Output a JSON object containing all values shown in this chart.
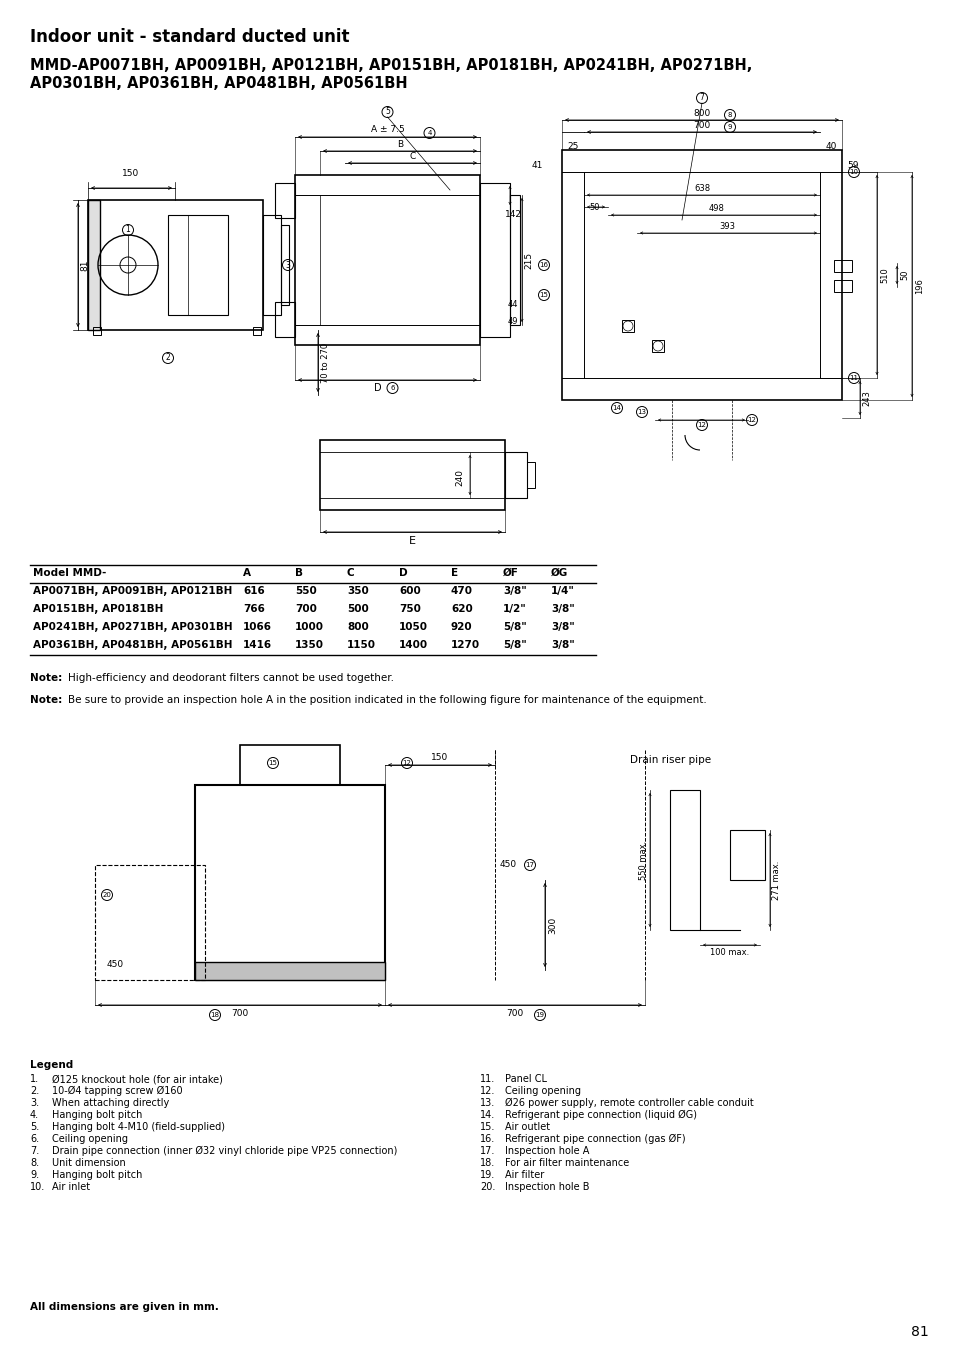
{
  "title": "Indoor unit - standard ducted unit",
  "subtitle_line1": "MMD-AP0071BH, AP0091BH, AP0121BH, AP0151BH, AP0181BH, AP0241BH, AP0271BH,",
  "subtitle_line2": "AP0301BH, AP0361BH, AP0481BH, AP0561BH",
  "table_headers": [
    "Model MMD-",
    "A",
    "B",
    "C",
    "D",
    "E",
    "ØF",
    "ØG"
  ],
  "table_rows": [
    [
      "AP0071BH, AP0091BH, AP0121BH",
      "616",
      "550",
      "350",
      "600",
      "470",
      "3/8\"",
      "1/4\""
    ],
    [
      "AP0151BH, AP0181BH",
      "766",
      "700",
      "500",
      "750",
      "620",
      "1/2\"",
      "3/8\""
    ],
    [
      "AP0241BH, AP0271BH, AP0301BH",
      "1066",
      "1000",
      "800",
      "1050",
      "920",
      "5/8\"",
      "3/8\""
    ],
    [
      "AP0361BH, AP0481BH, AP0561BH",
      "1416",
      "1350",
      "1150",
      "1400",
      "1270",
      "5/8\"",
      "3/8\""
    ]
  ],
  "note1": "High-efficiency and deodorant filters cannot be used together.",
  "note2": "Be sure to provide an inspection hole A in the position indicated in the following figure for maintenance of the equipment.",
  "legend_title": "Legend",
  "legend_col1": [
    [
      "1.",
      "Ø125 knockout hole (for air intake)"
    ],
    [
      "2.",
      "10-Ø4 tapping screw Ø160"
    ],
    [
      "3.",
      "When attaching directly"
    ],
    [
      "4.",
      "Hanging bolt pitch"
    ],
    [
      "5.",
      "Hanging bolt 4-M10 (field-supplied)"
    ],
    [
      "6.",
      "Ceiling opening"
    ],
    [
      "7.",
      "Drain pipe connection (inner Ø32 vinyl chloride pipe VP25 connection)"
    ],
    [
      "8.",
      "Unit dimension"
    ],
    [
      "9.",
      "Hanging bolt pitch"
    ],
    [
      "10.",
      "Air inlet"
    ]
  ],
  "legend_col2": [
    [
      "11.",
      "Panel CL"
    ],
    [
      "12.",
      "Ceiling opening"
    ],
    [
      "13.",
      "Ø26 power supply, remote controller cable conduit"
    ],
    [
      "14.",
      "Refrigerant pipe connection (liquid ØG)"
    ],
    [
      "15.",
      "Air outlet"
    ],
    [
      "16.",
      "Refrigerant pipe connection (gas ØF)"
    ],
    [
      "17.",
      "Inspection hole A"
    ],
    [
      "18.",
      "For air filter maintenance"
    ],
    [
      "19.",
      "Air filter"
    ],
    [
      "20.",
      "Inspection hole B"
    ]
  ],
  "footer": "All dimensions are given in mm.",
  "page_number": "81",
  "drain_riser_label": "Drain riser pipe",
  "bg_color": "#ffffff",
  "line_color": "#000000"
}
